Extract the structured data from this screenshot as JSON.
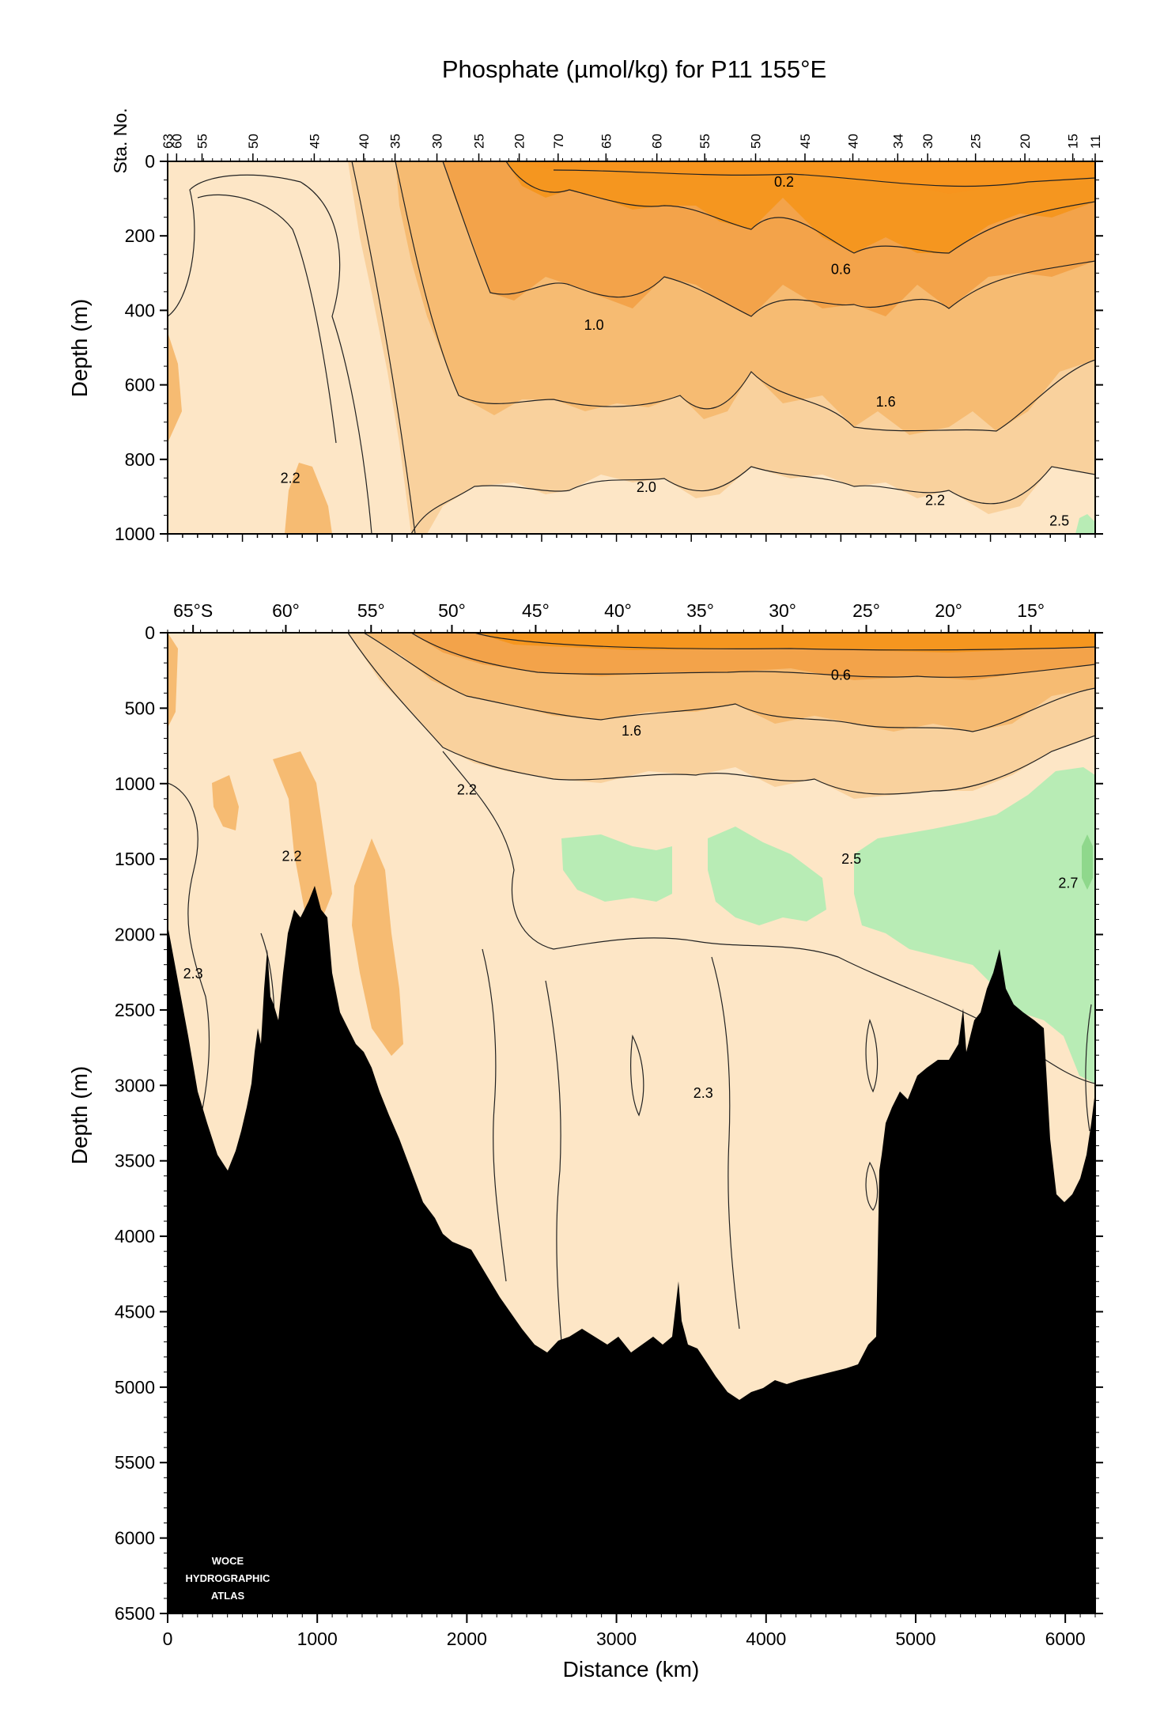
{
  "chart_data": [
    {
      "type": "heatmap",
      "title": "Phosphate (µmol/kg) for P11 155°E",
      "ylabel": "Depth (m)",
      "xlim": [
        0,
        6200
      ],
      "ylim": [
        1000,
        0
      ],
      "y_ticks": [
        "0",
        "200",
        "400",
        "600",
        "800",
        "1000"
      ],
      "station_axis_label": "Sta. No.",
      "stations": [
        {
          "label": "63",
          "x": 0
        },
        {
          "label": "60",
          "x": 60
        },
        {
          "label": "55",
          "x": 230
        },
        {
          "label": "50",
          "x": 570
        },
        {
          "label": "45",
          "x": 980
        },
        {
          "label": "40",
          "x": 1310
        },
        {
          "label": "35",
          "x": 1520
        },
        {
          "label": "30",
          "x": 1800
        },
        {
          "label": "25",
          "x": 2080
        },
        {
          "label": "20",
          "x": 2350
        },
        {
          "label": "70",
          "x": 2610
        },
        {
          "label": "65",
          "x": 2930
        },
        {
          "label": "60",
          "x": 3270
        },
        {
          "label": "55",
          "x": 3590
        },
        {
          "label": "50",
          "x": 3930
        },
        {
          "label": "45",
          "x": 4260
        },
        {
          "label": "40",
          "x": 4580
        },
        {
          "label": "34",
          "x": 4880
        },
        {
          "label": "30",
          "x": 5080
        },
        {
          "label": "25",
          "x": 5400
        },
        {
          "label": "20",
          "x": 5730
        },
        {
          "label": "15",
          "x": 6050
        },
        {
          "label": "11",
          "x": 6200
        }
      ],
      "contour_labels": [
        {
          "text": "0.2",
          "x": 4120,
          "y": 55
        },
        {
          "text": "0.6",
          "x": 4500,
          "y": 290
        },
        {
          "text": "1.0",
          "x": 2850,
          "y": 440
        },
        {
          "text": "1.6",
          "x": 4800,
          "y": 645
        },
        {
          "text": "2.2",
          "x": 820,
          "y": 850
        },
        {
          "text": "2.0",
          "x": 3200,
          "y": 875
        },
        {
          "text": "2.2",
          "x": 5130,
          "y": 910
        },
        {
          "text": "2.5",
          "x": 5960,
          "y": 965
        }
      ]
    },
    {
      "type": "heatmap",
      "xlabel": "Distance (km)",
      "ylabel": "Depth (m)",
      "xlim": [
        0,
        6200
      ],
      "ylim": [
        6500,
        0
      ],
      "x_ticks": [
        "0",
        "1000",
        "2000",
        "3000",
        "4000",
        "5000",
        "6000"
      ],
      "y_ticks": [
        "0",
        "500",
        "1000",
        "1500",
        "2000",
        "2500",
        "3000",
        "3500",
        "4000",
        "4500",
        "5000",
        "5500",
        "6000",
        "6500"
      ],
      "latitude_ticks": [
        {
          "label": "65°S",
          "x": 170
        },
        {
          "label": "60°",
          "x": 790
        },
        {
          "label": "55°",
          "x": 1360
        },
        {
          "label": "50°",
          "x": 1900
        },
        {
          "label": "45°",
          "x": 2460
        },
        {
          "label": "40°",
          "x": 3010
        },
        {
          "label": "35°",
          "x": 3560
        },
        {
          "label": "30°",
          "x": 4110
        },
        {
          "label": "25°",
          "x": 4670
        },
        {
          "label": "20°",
          "x": 5220
        },
        {
          "label": "15°",
          "x": 5770
        }
      ],
      "contour_labels": [
        {
          "text": "0.6",
          "x": 4500,
          "y": 280
        },
        {
          "text": "1.6",
          "x": 3100,
          "y": 650
        },
        {
          "text": "2.2",
          "x": 2000,
          "y": 1040
        },
        {
          "text": "2.2",
          "x": 830,
          "y": 1480
        },
        {
          "text": "2.5",
          "x": 4570,
          "y": 1500
        },
        {
          "text": "2.7",
          "x": 6020,
          "y": 1660
        },
        {
          "text": "2.3",
          "x": 170,
          "y": 2260
        },
        {
          "text": "2.3",
          "x": 3580,
          "y": 3050
        }
      ],
      "logo_lines": [
        "WOCE",
        "HYDROGRAPHIC",
        "ATLAS"
      ]
    }
  ]
}
